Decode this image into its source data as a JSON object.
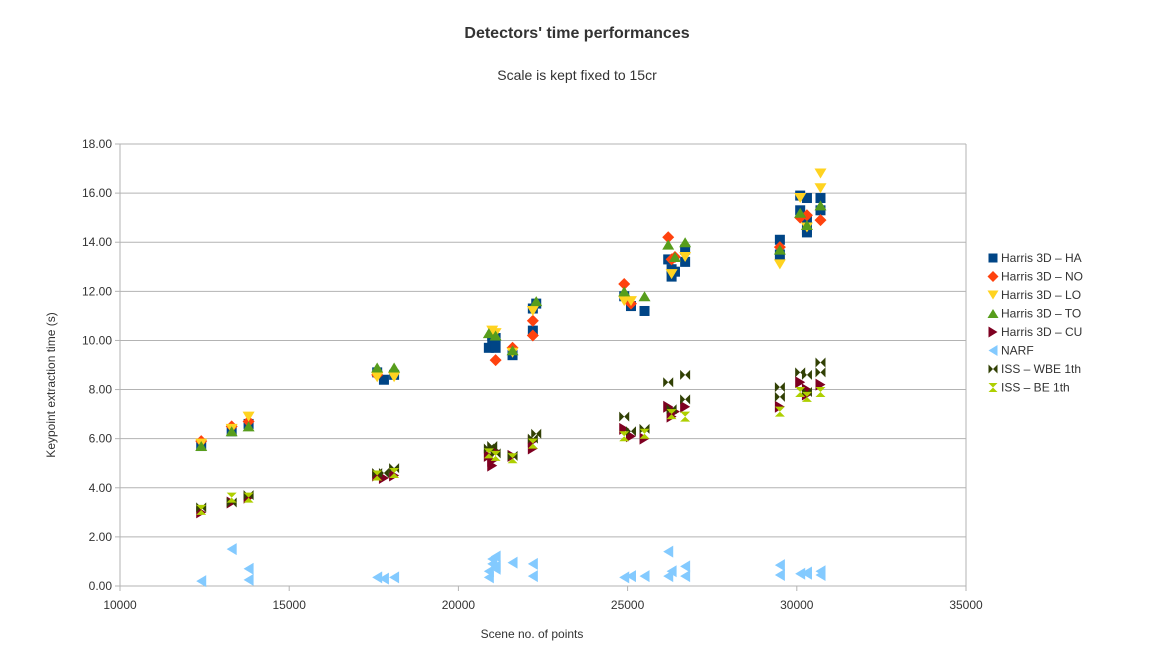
{
  "chart_data": {
    "type": "scatter",
    "title": "Detectors' time performances",
    "subtitle": "Scale is kept fixed to 15cr",
    "xlabel": "Scene no. of points",
    "ylabel": "Keypoint extraction time (s)",
    "xlim": [
      10000,
      35000
    ],
    "ylim": [
      0,
      18
    ],
    "x_ticks": [
      10000,
      15000,
      20000,
      25000,
      30000,
      35000
    ],
    "y_ticks": [
      0,
      2,
      4,
      6,
      8,
      10,
      12,
      14,
      16,
      18
    ],
    "y_tick_labels": [
      "0.00",
      "2.00",
      "4.00",
      "6.00",
      "8.00",
      "10.00",
      "12.00",
      "14.00",
      "16.00",
      "18.00"
    ],
    "grid": "horizontal",
    "legend_position": "right",
    "series": [
      {
        "name": "Harris 3D – HA",
        "color": "#004586",
        "marker": "square",
        "points": [
          [
            12400,
            5.7
          ],
          [
            13300,
            6.3
          ],
          [
            13800,
            6.6
          ],
          [
            17600,
            8.7
          ],
          [
            17800,
            8.4
          ],
          [
            18100,
            8.6
          ],
          [
            20900,
            9.7
          ],
          [
            21000,
            9.9
          ],
          [
            21100,
            9.7
          ],
          [
            21000,
            10.2
          ],
          [
            21100,
            10.1
          ],
          [
            21600,
            9.4
          ],
          [
            22200,
            10.4
          ],
          [
            22200,
            11.3
          ],
          [
            22300,
            11.5
          ],
          [
            24900,
            11.8
          ],
          [
            25100,
            11.4
          ],
          [
            25500,
            11.2
          ],
          [
            26200,
            13.3
          ],
          [
            26300,
            12.6
          ],
          [
            26300,
            12.9
          ],
          [
            26400,
            12.8
          ],
          [
            26700,
            13.2
          ],
          [
            26700,
            13.7
          ],
          [
            29500,
            13.5
          ],
          [
            29500,
            14.1
          ],
          [
            30100,
            15.3
          ],
          [
            30100,
            15.9
          ],
          [
            30300,
            15.8
          ],
          [
            30300,
            14.9
          ],
          [
            30300,
            14.5
          ],
          [
            30300,
            14.4
          ],
          [
            30700,
            15.3
          ],
          [
            30700,
            15.8
          ]
        ]
      },
      {
        "name": "Harris 3D – NO",
        "color": "#ff420e",
        "marker": "diamond",
        "points": [
          [
            12400,
            5.9
          ],
          [
            13300,
            6.5
          ],
          [
            13800,
            6.7
          ],
          [
            17600,
            8.6
          ],
          [
            21000,
            10.3
          ],
          [
            21100,
            9.2
          ],
          [
            21600,
            9.7
          ],
          [
            22200,
            10.2
          ],
          [
            22200,
            10.8
          ],
          [
            24900,
            12.3
          ],
          [
            25100,
            11.5
          ],
          [
            26200,
            14.2
          ],
          [
            26300,
            13.3
          ],
          [
            26400,
            13.4
          ],
          [
            29500,
            13.8
          ],
          [
            30100,
            15.0
          ],
          [
            30300,
            15.1
          ],
          [
            30700,
            14.9
          ]
        ]
      },
      {
        "name": "Harris 3D – LO",
        "color": "#ffd320",
        "marker": "triangle-down",
        "points": [
          [
            12400,
            5.8
          ],
          [
            13300,
            6.4
          ],
          [
            13800,
            6.9
          ],
          [
            17600,
            8.5
          ],
          [
            18100,
            8.5
          ],
          [
            21000,
            10.4
          ],
          [
            21100,
            10.3
          ],
          [
            21600,
            9.5
          ],
          [
            22200,
            11.2
          ],
          [
            24900,
            11.6
          ],
          [
            25100,
            11.6
          ],
          [
            26300,
            12.7
          ],
          [
            26700,
            13.4
          ],
          [
            29500,
            13.1
          ],
          [
            30100,
            15.8
          ],
          [
            30300,
            14.6
          ],
          [
            30700,
            16.8
          ],
          [
            30700,
            16.2
          ]
        ]
      },
      {
        "name": "Harris 3D – TO",
        "color": "#579d1c",
        "marker": "triangle-up",
        "points": [
          [
            12400,
            5.7
          ],
          [
            13300,
            6.3
          ],
          [
            13800,
            6.5
          ],
          [
            17600,
            8.9
          ],
          [
            18100,
            8.9
          ],
          [
            20900,
            10.3
          ],
          [
            21100,
            10.2
          ],
          [
            21600,
            9.6
          ],
          [
            22300,
            11.6
          ],
          [
            24900,
            12.0
          ],
          [
            25500,
            11.8
          ],
          [
            26200,
            13.9
          ],
          [
            26400,
            13.4
          ],
          [
            26700,
            14.0
          ],
          [
            29500,
            13.7
          ],
          [
            30100,
            15.2
          ],
          [
            30300,
            14.7
          ],
          [
            30700,
            15.5
          ]
        ]
      },
      {
        "name": "Harris 3D – CU",
        "color": "#7e0021",
        "marker": "triangle-right",
        "points": [
          [
            12400,
            3.0
          ],
          [
            13300,
            3.4
          ],
          [
            13800,
            3.6
          ],
          [
            17600,
            4.5
          ],
          [
            17800,
            4.4
          ],
          [
            18100,
            4.5
          ],
          [
            20900,
            5.3
          ],
          [
            21000,
            5.1
          ],
          [
            21000,
            4.9
          ],
          [
            21100,
            5.5
          ],
          [
            21600,
            5.3
          ],
          [
            22200,
            5.6
          ],
          [
            22200,
            5.9
          ],
          [
            24900,
            6.4
          ],
          [
            25100,
            6.1
          ],
          [
            25500,
            6.0
          ],
          [
            26200,
            7.3
          ],
          [
            26300,
            6.9
          ],
          [
            26400,
            7.1
          ],
          [
            26700,
            7.3
          ],
          [
            29500,
            7.3
          ],
          [
            30100,
            8.3
          ],
          [
            30300,
            7.8
          ],
          [
            30300,
            8.0
          ],
          [
            30700,
            8.2
          ]
        ]
      },
      {
        "name": "NARF",
        "color": "#83caff",
        "marker": "triangle-left",
        "points": [
          [
            12400,
            0.2
          ],
          [
            13300,
            1.5
          ],
          [
            13800,
            0.7
          ],
          [
            13800,
            0.25
          ],
          [
            17600,
            0.35
          ],
          [
            17800,
            0.3
          ],
          [
            18100,
            0.35
          ],
          [
            20900,
            0.35
          ],
          [
            20900,
            0.6
          ],
          [
            21000,
            1.1
          ],
          [
            21000,
            0.9
          ],
          [
            21100,
            1.2
          ],
          [
            21100,
            0.7
          ],
          [
            21100,
            0.8
          ],
          [
            21600,
            0.95
          ],
          [
            22200,
            0.4
          ],
          [
            22200,
            0.9
          ],
          [
            24900,
            0.35
          ],
          [
            25100,
            0.4
          ],
          [
            25500,
            0.4
          ],
          [
            26200,
            1.4
          ],
          [
            26200,
            0.4
          ],
          [
            26300,
            0.6
          ],
          [
            26700,
            0.4
          ],
          [
            26700,
            0.8
          ],
          [
            29500,
            0.85
          ],
          [
            29500,
            0.45
          ],
          [
            30100,
            0.5
          ],
          [
            30300,
            0.5
          ],
          [
            30300,
            0.55
          ],
          [
            30700,
            0.6
          ],
          [
            30700,
            0.45
          ]
        ]
      },
      {
        "name": "ISS – WBE 1th",
        "color": "#314004",
        "marker": "bowtie",
        "points": [
          [
            12400,
            3.2
          ],
          [
            13300,
            3.4
          ],
          [
            13800,
            3.7
          ],
          [
            17600,
            4.6
          ],
          [
            17800,
            4.6
          ],
          [
            18100,
            4.8
          ],
          [
            20900,
            5.6
          ],
          [
            21000,
            5.7
          ],
          [
            21100,
            5.4
          ],
          [
            21600,
            5.3
          ],
          [
            22200,
            6.0
          ],
          [
            22300,
            6.2
          ],
          [
            24900,
            6.9
          ],
          [
            25100,
            6.3
          ],
          [
            25500,
            6.4
          ],
          [
            26200,
            8.3
          ],
          [
            26300,
            7.2
          ],
          [
            26700,
            7.6
          ],
          [
            26700,
            8.6
          ],
          [
            29500,
            8.1
          ],
          [
            29500,
            7.7
          ],
          [
            30100,
            8.7
          ],
          [
            30300,
            8.6
          ],
          [
            30300,
            7.9
          ],
          [
            30700,
            9.1
          ],
          [
            30700,
            8.7
          ]
        ]
      },
      {
        "name": "ISS – BE 1th",
        "color": "#aecf00",
        "marker": "hourglass",
        "points": [
          [
            12400,
            3.1
          ],
          [
            13300,
            3.6
          ],
          [
            13800,
            3.6
          ],
          [
            17600,
            4.5
          ],
          [
            18100,
            4.6
          ],
          [
            20900,
            5.4
          ],
          [
            21100,
            5.3
          ],
          [
            21600,
            5.2
          ],
          [
            22200,
            5.8
          ],
          [
            24900,
            6.1
          ],
          [
            25500,
            6.2
          ],
          [
            26300,
            7.0
          ],
          [
            26700,
            6.9
          ],
          [
            29500,
            7.1
          ],
          [
            30100,
            7.9
          ],
          [
            30300,
            7.7
          ],
          [
            30700,
            7.9
          ]
        ]
      }
    ]
  }
}
